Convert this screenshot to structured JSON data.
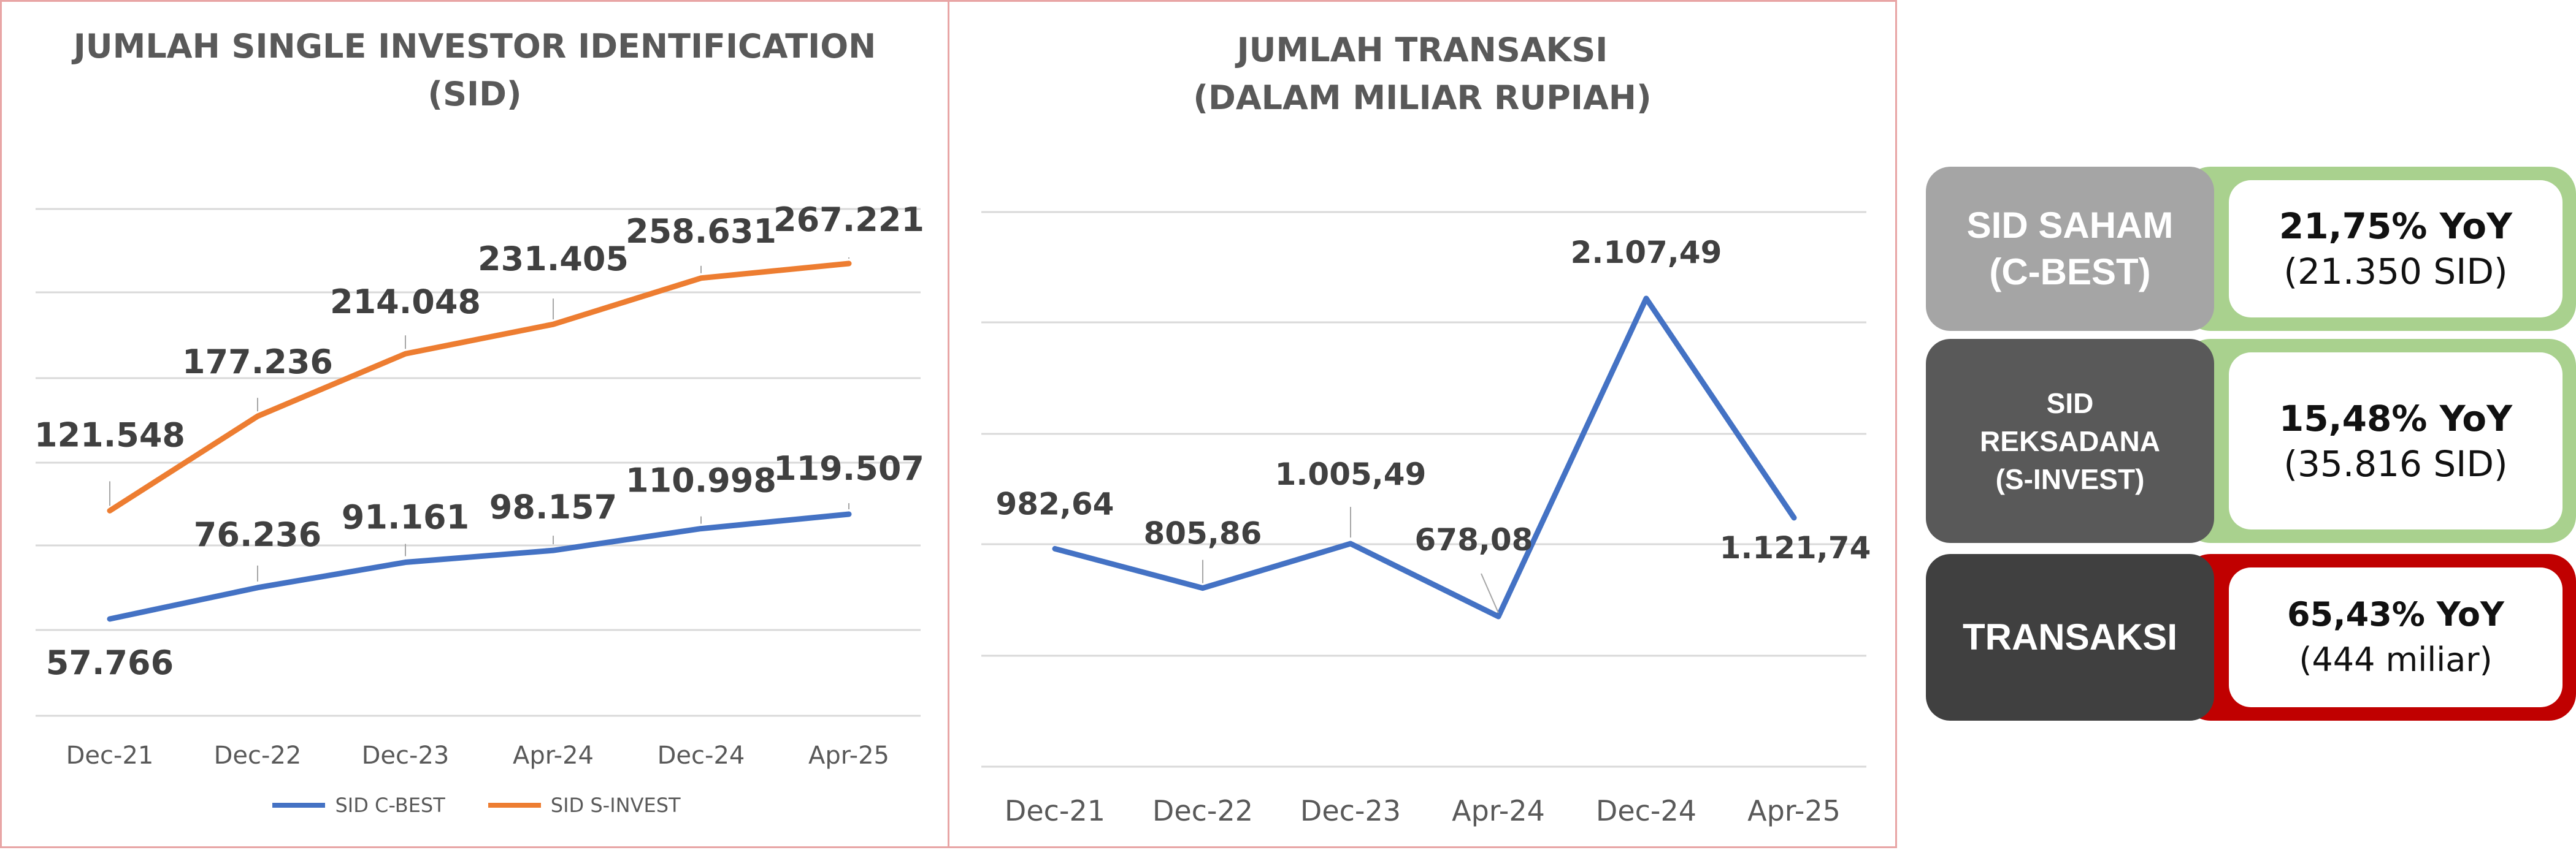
{
  "chart_data": [
    {
      "type": "line",
      "title": "JUMLAH SINGLE INVESTOR IDENTIFICATION (SID)",
      "title_lines": [
        "JUMLAH SINGLE INVESTOR IDENTIFICATION",
        "(SID)"
      ],
      "categories": [
        "Dec-21",
        "Dec-22",
        "Dec-23",
        "Apr-24",
        "Dec-24",
        "Apr-25"
      ],
      "series": [
        {
          "name": "SID C-BEST",
          "color": "#4472c4",
          "values": [
            57766,
            76236,
            91161,
            98157,
            110998,
            119507
          ],
          "labels": [
            "57.766",
            "76.236",
            "91.161",
            "98.157",
            "110.998",
            "119.507"
          ]
        },
        {
          "name": "SID S-INVEST",
          "color": "#ed7d31",
          "values": [
            121548,
            177236,
            214048,
            231405,
            258631,
            267221
          ],
          "labels": [
            "121.548",
            "177.236",
            "214.048",
            "231.405",
            "258.631",
            "267.221"
          ]
        }
      ],
      "legend": "bottom",
      "grid": true,
      "ylabel": "",
      "xlabel": ""
    },
    {
      "type": "line",
      "title": "JUMLAH TRANSAKSI (DALAM MILIAR RUPIAH)",
      "title_lines": [
        "JUMLAH TRANSAKSI",
        "(DALAM MILIAR RUPIAH)"
      ],
      "categories": [
        "Dec-21",
        "Dec-22",
        "Dec-23",
        "Apr-24",
        "Dec-24",
        "Apr-25"
      ],
      "series": [
        {
          "color": "#4472c4",
          "values": [
            982.64,
            805.86,
            1005.49,
            678.08,
            2107.49,
            1121.74
          ],
          "labels": [
            "982,64",
            "805,86",
            "1.005,49",
            "678,08",
            "2.107,49",
            "1.121,74"
          ]
        }
      ],
      "legend": "none",
      "grid": true,
      "ylabel": "",
      "xlabel": ""
    }
  ],
  "kpis": [
    {
      "label_lines": [
        "SID SAHAM",
        "(C-BEST)"
      ],
      "pct": "21,75% YoY",
      "sub": "(21.350 SID)",
      "label_color": "#a5a5a5",
      "accent_color": "#a9d18e"
    },
    {
      "label_lines": [
        "SID",
        "REKSADANA",
        "(S-INVEST)"
      ],
      "pct": "15,48% YoY",
      "sub": "(35.816 SID)",
      "label_color": "#595959",
      "accent_color": "#a9d18e"
    },
    {
      "label_lines": [
        "TRANSAKSI"
      ],
      "pct": "65,43% YoY",
      "sub": "(444 miliar)",
      "label_color": "#404040",
      "accent_color": "#c00000"
    }
  ]
}
